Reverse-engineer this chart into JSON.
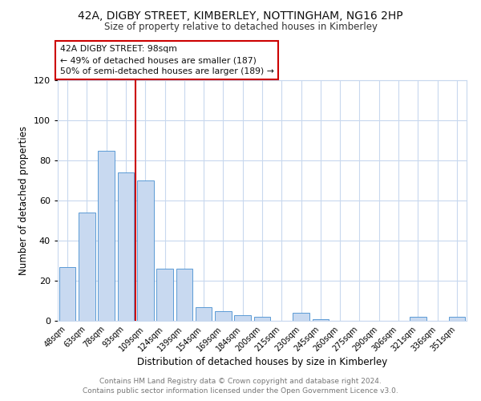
{
  "title": "42A, DIGBY STREET, KIMBERLEY, NOTTINGHAM, NG16 2HP",
  "subtitle": "Size of property relative to detached houses in Kimberley",
  "xlabel": "Distribution of detached houses by size in Kimberley",
  "ylabel": "Number of detached properties",
  "bar_labels": [
    "48sqm",
    "63sqm",
    "78sqm",
    "93sqm",
    "109sqm",
    "124sqm",
    "139sqm",
    "154sqm",
    "169sqm",
    "184sqm",
    "200sqm",
    "215sqm",
    "230sqm",
    "245sqm",
    "260sqm",
    "275sqm",
    "290sqm",
    "306sqm",
    "321sqm",
    "336sqm",
    "351sqm"
  ],
  "bar_values": [
    27,
    54,
    85,
    74,
    70,
    26,
    26,
    7,
    5,
    3,
    2,
    0,
    4,
    1,
    0,
    0,
    0,
    0,
    2,
    0,
    2
  ],
  "bar_color": "#c8d9f0",
  "bar_edge_color": "#5b9bd5",
  "ylim": [
    0,
    120
  ],
  "yticks": [
    0,
    20,
    40,
    60,
    80,
    100,
    120
  ],
  "vline_color": "#cc0000",
  "annotation_box_text": "42A DIGBY STREET: 98sqm\n← 49% of detached houses are smaller (187)\n50% of semi-detached houses are larger (189) →",
  "footer_line1": "Contains HM Land Registry data © Crown copyright and database right 2024.",
  "footer_line2": "Contains public sector information licensed under the Open Government Licence v3.0.",
  "background_color": "#ffffff",
  "grid_color": "#c8d8ee"
}
